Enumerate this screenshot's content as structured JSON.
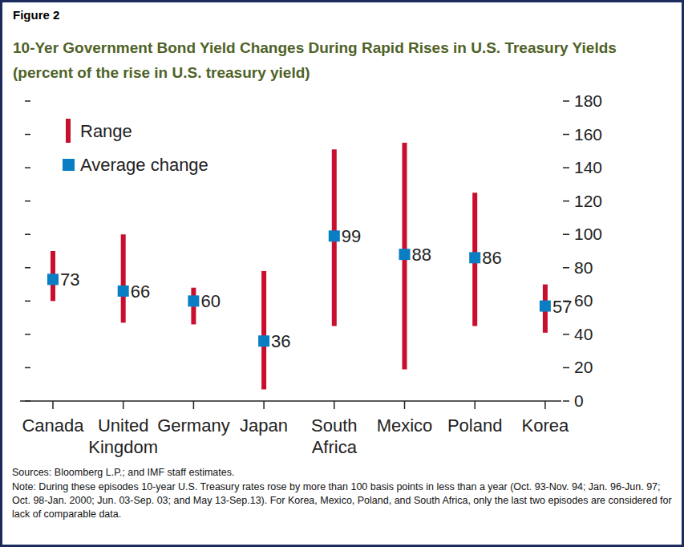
{
  "chart_data": {
    "type": "range",
    "label": "Figure 2",
    "title": "10-Yer Government Bond Yield Changes During Rapid Rises in U.S. Treasury Yields",
    "subtitle": "(percent of the rise in U.S. treasury yield)",
    "categories": [
      "Canada",
      "United Kingdom",
      "Germany",
      "Japan",
      "South Africa",
      "Mexico",
      "Poland",
      "Korea"
    ],
    "series": [
      {
        "name": "Range",
        "type": "range",
        "color": "#c8102e",
        "low": [
          60,
          47,
          46,
          7,
          45,
          19,
          45,
          41
        ],
        "high": [
          90,
          100,
          68,
          78,
          151,
          155,
          125,
          70
        ]
      },
      {
        "name": "Average change",
        "type": "scatter",
        "marker": "square",
        "color": "#0a7ec2",
        "values": [
          73,
          66,
          60,
          36,
          99,
          88,
          86,
          57
        ]
      }
    ],
    "data_labels": true,
    "legend": "top-left",
    "ylim": [
      0,
      180
    ],
    "yticks": [
      0,
      20,
      40,
      60,
      80,
      100,
      120,
      140,
      160,
      180
    ],
    "sources": "Sources: Bloomberg L.P.; and IMF staff estimates.",
    "note": "Note: During these episodes 10-year U.S. Treasury rates rose by more than 100 basis points in less than a year (Oct. 93-Nov. 94; Jan. 96-Jun. 97; Oct. 98-Jan. 2000; Jun. 03-Sep. 03; and May 13-Sep.13). For Korea, Mexico, Poland, and South Africa, only the last two episodes are considered for lack of comparable data."
  }
}
